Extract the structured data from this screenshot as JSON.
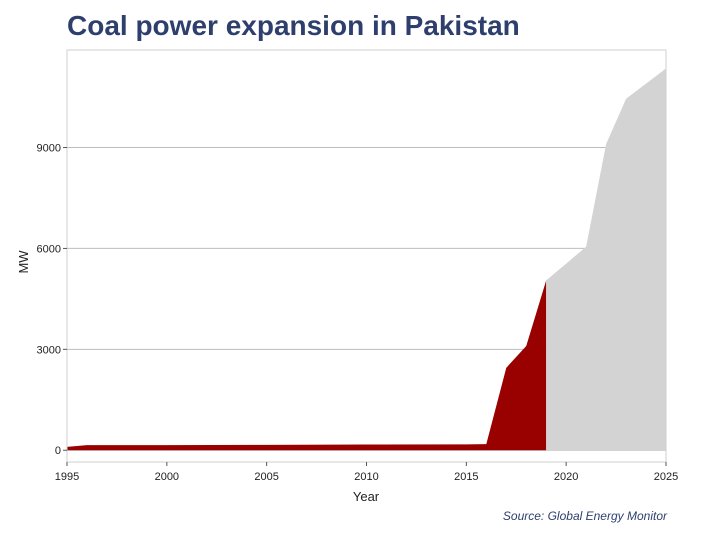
{
  "title": "Coal power expansion in Pakistan",
  "source": "Source: Global Energy Monitor",
  "chart_data": {
    "type": "area",
    "title": "Coal power expansion in Pakistan",
    "xlabel": "Year",
    "ylabel": "MW",
    "xlim": [
      1995,
      2025
    ],
    "ylim": [
      -350,
      11900
    ],
    "x_ticks": [
      1995,
      2000,
      2005,
      2010,
      2015,
      2020,
      2025
    ],
    "y_ticks": [
      0,
      3000,
      6000,
      9000
    ],
    "grid": "horizontal",
    "series": [
      {
        "color": "#990000",
        "x": [
          1995,
          1996,
          2000,
          2005,
          2010,
          2015,
          2016,
          2017,
          2018,
          2019
        ],
        "values": [
          100,
          150,
          150,
          160,
          170,
          175,
          180,
          2450,
          3100,
          5050
        ]
      },
      {
        "color": "#d3d3d3",
        "x": [
          2019,
          2020,
          2021,
          2022,
          2023,
          2024,
          2025
        ],
        "values": [
          5050,
          5550,
          6050,
          9100,
          10450,
          10900,
          11350
        ]
      }
    ]
  }
}
